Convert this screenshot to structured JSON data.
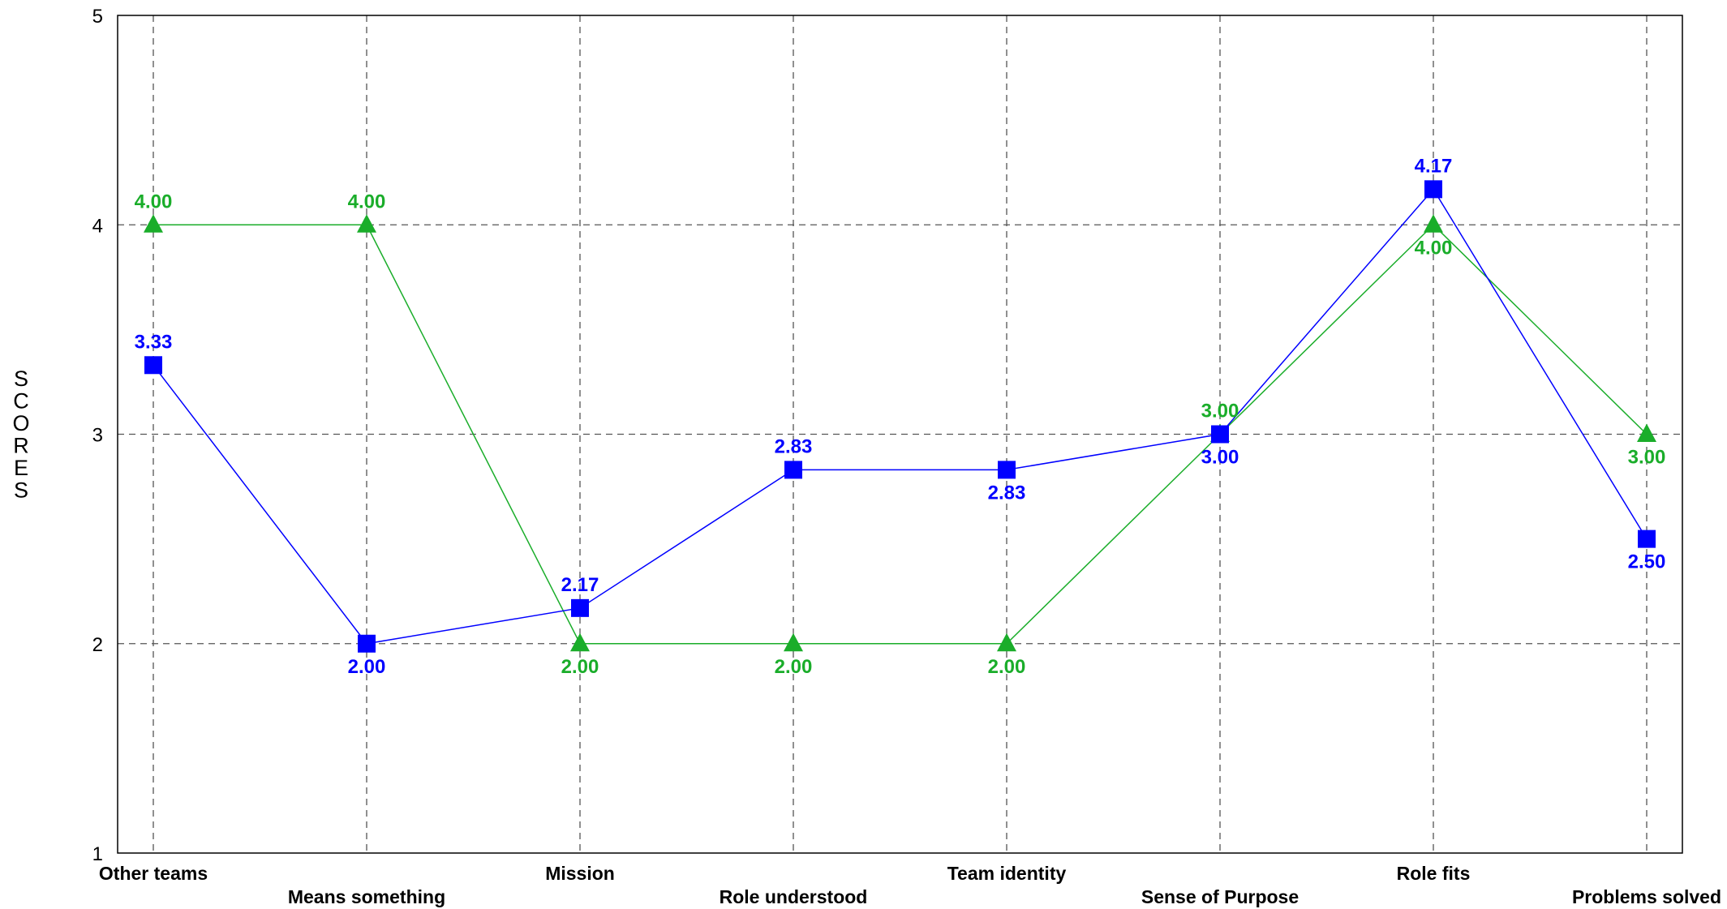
{
  "chart_data": {
    "type": "line",
    "title": "",
    "xlabel": "",
    "ylabel": "SCORES",
    "categories": [
      "Other teams",
      "Means something",
      "Mission",
      "Role understood",
      "Team identity",
      "Sense of Purpose",
      "Role fits",
      "Problems solved"
    ],
    "ylim": [
      1,
      5
    ],
    "yticks": [
      "1",
      "2",
      "3",
      "4",
      "5"
    ],
    "grid": true,
    "legend": "none",
    "series": [
      {
        "color": "#0000ff",
        "marker": "square",
        "values": [
          3.33,
          2.0,
          2.17,
          2.83,
          2.83,
          3.0,
          4.17,
          2.5
        ],
        "labels": [
          "3.33",
          "2.00",
          "2.17",
          "2.83",
          "2.83",
          "3.00",
          "4.17",
          "2.50"
        ]
      },
      {
        "color": "#1aad2a",
        "marker": "triangle",
        "values": [
          4.0,
          4.0,
          2.0,
          2.0,
          2.0,
          3.0,
          4.0,
          3.0
        ],
        "labels": [
          "4.00",
          "4.00",
          "2.00",
          "2.00",
          "2.00",
          "3.00",
          "4.00",
          "3.00"
        ]
      }
    ]
  }
}
